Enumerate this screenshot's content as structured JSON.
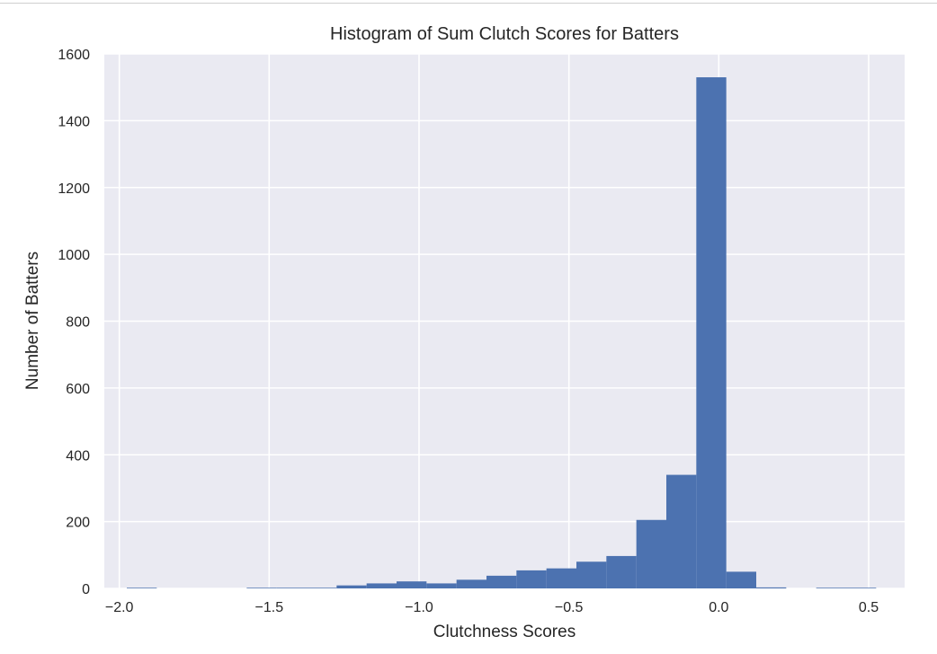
{
  "chart_data": {
    "type": "bar",
    "title": "Histogram of Sum Clutch Scores for Batters",
    "xlabel": "Clutchness Scores",
    "ylabel": "Number of Batters",
    "xlim": [
      -2.05,
      0.62
    ],
    "ylim": [
      0,
      1600
    ],
    "xticks": [
      -2.0,
      -1.5,
      -1.0,
      -0.5,
      0.0,
      0.5
    ],
    "xtick_labels": [
      "−2.0",
      "−1.5",
      "−1.0",
      "−0.5",
      "0.0",
      "0.5"
    ],
    "yticks": [
      0,
      200,
      400,
      600,
      800,
      1000,
      1200,
      1400,
      1600
    ],
    "ytick_labels": [
      "0",
      "200",
      "400",
      "600",
      "800",
      "1000",
      "1200",
      "1400",
      "1600"
    ],
    "grid": true,
    "bar_color": "#4c72b0",
    "background_color": "#eaeaf2",
    "grid_color": "#ffffff",
    "bins": [
      {
        "x0": -1.975,
        "x1": -1.875,
        "count": 2
      },
      {
        "x0": -1.575,
        "x1": -1.475,
        "count": 2
      },
      {
        "x0": -1.475,
        "x1": -1.375,
        "count": 2
      },
      {
        "x0": -1.375,
        "x1": -1.275,
        "count": 2
      },
      {
        "x0": -1.275,
        "x1": -1.175,
        "count": 9
      },
      {
        "x0": -1.175,
        "x1": -1.075,
        "count": 15
      },
      {
        "x0": -1.075,
        "x1": -0.975,
        "count": 21
      },
      {
        "x0": -0.975,
        "x1": -0.875,
        "count": 15
      },
      {
        "x0": -0.875,
        "x1": -0.775,
        "count": 26
      },
      {
        "x0": -0.775,
        "x1": -0.675,
        "count": 38
      },
      {
        "x0": -0.675,
        "x1": -0.575,
        "count": 54
      },
      {
        "x0": -0.575,
        "x1": -0.475,
        "count": 60
      },
      {
        "x0": -0.475,
        "x1": -0.375,
        "count": 80
      },
      {
        "x0": -0.375,
        "x1": -0.275,
        "count": 97
      },
      {
        "x0": -0.275,
        "x1": -0.175,
        "count": 205
      },
      {
        "x0": -0.175,
        "x1": -0.075,
        "count": 340
      },
      {
        "x0": -0.075,
        "x1": 0.025,
        "count": 1530
      },
      {
        "x0": 0.025,
        "x1": 0.125,
        "count": 50
      },
      {
        "x0": 0.125,
        "x1": 0.225,
        "count": 3
      },
      {
        "x0": 0.325,
        "x1": 0.425,
        "count": 2
      },
      {
        "x0": 0.425,
        "x1": 0.525,
        "count": 2
      }
    ]
  }
}
